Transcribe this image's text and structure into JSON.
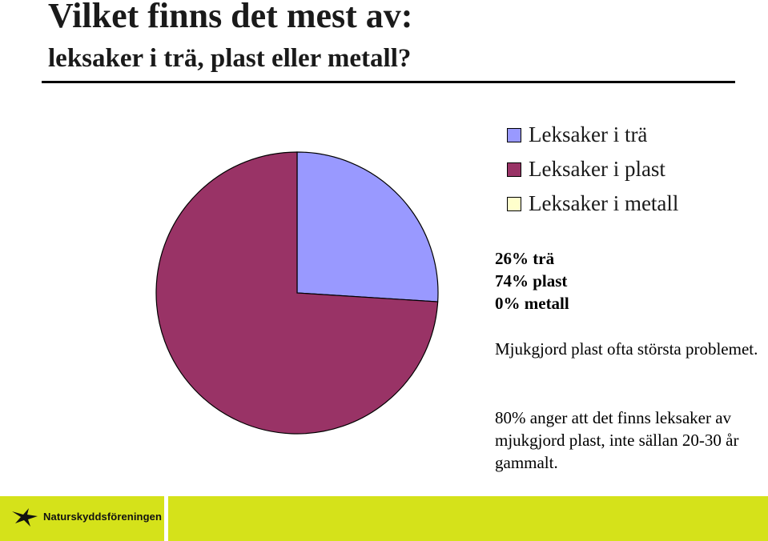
{
  "header": {
    "title": "Vilket finns det mest av:",
    "subtitle": "leksaker i trä, plast eller metall?"
  },
  "chart_data": {
    "type": "pie",
    "categories": [
      "Leksaker i trä",
      "Leksaker i plast",
      "Leksaker i metall"
    ],
    "values": [
      26,
      74,
      0
    ],
    "colors": [
      "#9999ff",
      "#993366",
      "#ffffcc"
    ],
    "legend": "top-right"
  },
  "stats": [
    "26% trä",
    "74% plast",
    "0% metall"
  ],
  "notes": [
    "Mjukgjord plast ofta största problemet.",
    "80% anger att det finns leksaker av mjukgjord plast, inte sällan 20-30 år gammalt."
  ],
  "footer": {
    "brand": "Naturskyddsföreningen",
    "accent_color": "#d5e21a",
    "logo_icon": "swift-bird-icon"
  }
}
